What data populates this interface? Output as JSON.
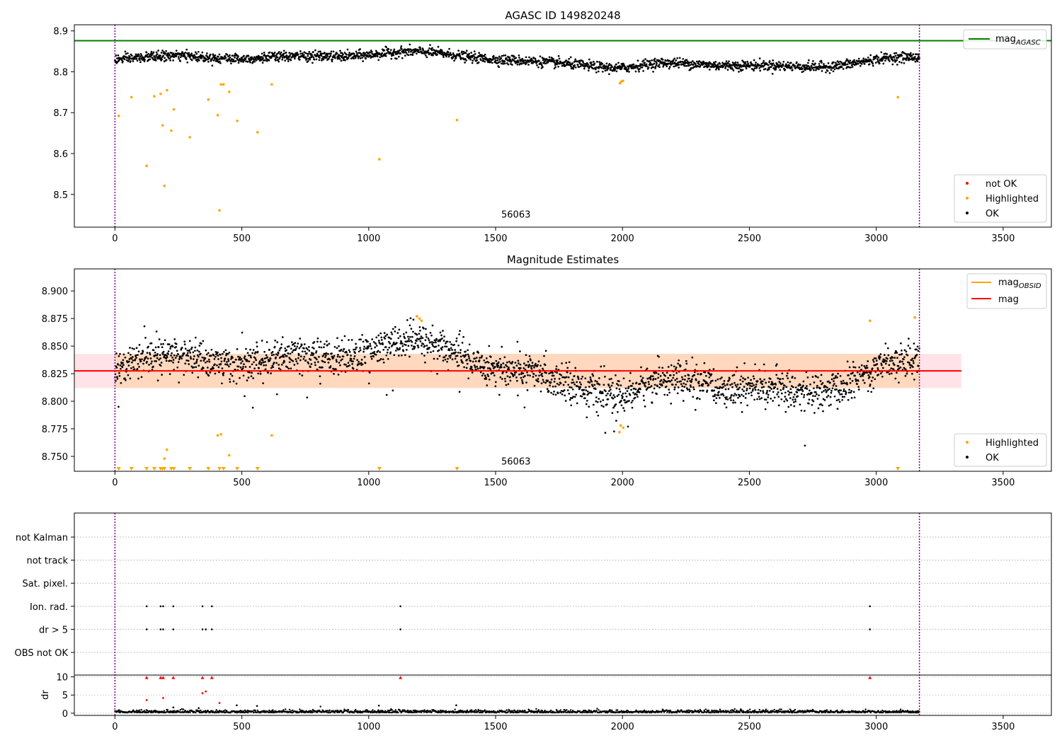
{
  "chart_data": [
    {
      "type": "scatter",
      "title": "AGASC ID 149820248",
      "xlim": [
        -160,
        3690
      ],
      "ylim": [
        8.42,
        8.915
      ],
      "x_ticks": [
        0,
        500,
        1000,
        1500,
        2000,
        2500,
        3000,
        3500
      ],
      "y_ticks": [
        8.5,
        8.6,
        8.7,
        8.8,
        8.9
      ],
      "vlines": [
        0,
        3170
      ],
      "vline_color": "#800080",
      "annotation": {
        "text": "56063",
        "x": 1580,
        "y": 8.443
      },
      "mag_agasc": 8.876,
      "mag_agasc_color": "#008000",
      "line_legend": {
        "label": "mag",
        "sub": "AGASC",
        "position": "top-right"
      },
      "point_legend": {
        "position": "lower-right",
        "entries": [
          {
            "label": "not OK",
            "color": "#ff0000"
          },
          {
            "label": "Highlighted",
            "color": "#ffa500"
          },
          {
            "label": "OK",
            "color": "#000000"
          }
        ]
      },
      "ok_series": {
        "x_start": 0,
        "x_end": 3170,
        "mean": 8.828,
        "trend_amp": 0.014,
        "scatter": 0.008
      },
      "highlighted": [
        {
          "x": 15,
          "y": 8.692
        },
        {
          "x": 65,
          "y": 8.738
        },
        {
          "x": 125,
          "y": 8.57
        },
        {
          "x": 155,
          "y": 8.74
        },
        {
          "x": 180,
          "y": 8.746
        },
        {
          "x": 188,
          "y": 8.669
        },
        {
          "x": 195,
          "y": 8.521
        },
        {
          "x": 205,
          "y": 8.755
        },
        {
          "x": 222,
          "y": 8.656
        },
        {
          "x": 232,
          "y": 8.708
        },
        {
          "x": 295,
          "y": 8.64
        },
        {
          "x": 368,
          "y": 8.732
        },
        {
          "x": 405,
          "y": 8.694
        },
        {
          "x": 412,
          "y": 8.461
        },
        {
          "x": 418,
          "y": 8.769
        },
        {
          "x": 428,
          "y": 8.769
        },
        {
          "x": 450,
          "y": 8.751
        },
        {
          "x": 482,
          "y": 8.68
        },
        {
          "x": 562,
          "y": 8.652
        },
        {
          "x": 618,
          "y": 8.769
        },
        {
          "x": 1042,
          "y": 8.586
        },
        {
          "x": 1348,
          "y": 8.682
        },
        {
          "x": 1990,
          "y": 8.772
        },
        {
          "x": 1995,
          "y": 8.776
        },
        {
          "x": 2002,
          "y": 8.778
        },
        {
          "x": 3085,
          "y": 8.738
        }
      ]
    },
    {
      "type": "scatter",
      "title": "Magnitude Estimates",
      "xlim": [
        -160,
        3690
      ],
      "ylim": [
        8.7365,
        8.92
      ],
      "x_ticks": [
        0,
        500,
        1000,
        1500,
        2000,
        2500,
        3000,
        3500
      ],
      "y_ticks": [
        8.75,
        8.775,
        8.8,
        8.825,
        8.85,
        8.875,
        8.9
      ],
      "y_tick_labels": [
        "8.750",
        "8.775",
        "8.800",
        "8.825",
        "8.850",
        "8.875",
        "8.900"
      ],
      "vlines": [
        0,
        3170
      ],
      "vline_color": "#800080",
      "annotation": {
        "text": "56063",
        "x": 1580,
        "y": 8.7425
      },
      "mag": 8.8275,
      "mag_color": "#ff0000",
      "band": {
        "low": 8.812,
        "high": 8.843,
        "x_start": -160,
        "x_end": 3335
      },
      "line_legend": {
        "position": "top-right",
        "entries": [
          {
            "label": "mag",
            "sub": "OBSID",
            "color": "#ffa500"
          },
          {
            "label": "mag",
            "sub": "",
            "color": "#ff0000"
          }
        ]
      },
      "point_legend": {
        "position": "lower-right",
        "entries": [
          {
            "label": "Highlighted",
            "color": "#ffa500"
          },
          {
            "label": "OK",
            "color": "#000000"
          }
        ]
      },
      "ok_series": {
        "x_start": 0,
        "x_end": 3170,
        "mean": 8.828,
        "trend_amp": 0.014,
        "scatter": 0.008
      },
      "highlighted_points": [
        {
          "x": 195,
          "y": 8.748
        },
        {
          "x": 205,
          "y": 8.756
        },
        {
          "x": 405,
          "y": 8.769
        },
        {
          "x": 418,
          "y": 8.77
        },
        {
          "x": 450,
          "y": 8.751
        },
        {
          "x": 618,
          "y": 8.769
        },
        {
          "x": 1190,
          "y": 8.877
        },
        {
          "x": 1200,
          "y": 8.875
        },
        {
          "x": 1208,
          "y": 8.873
        },
        {
          "x": 1988,
          "y": 8.772
        },
        {
          "x": 1993,
          "y": 8.778
        },
        {
          "x": 2003,
          "y": 8.776
        },
        {
          "x": 2975,
          "y": 8.873
        },
        {
          "x": 3152,
          "y": 8.876
        }
      ],
      "clipped_markers_x": [
        15,
        65,
        125,
        155,
        180,
        188,
        195,
        222,
        232,
        295,
        368,
        412,
        428,
        482,
        562,
        1042,
        1348,
        3085
      ]
    },
    {
      "type": "scatter",
      "title": "",
      "xlim": [
        -160,
        3690
      ],
      "x_ticks": [
        0,
        500,
        1000,
        1500,
        2000,
        2500,
        3000,
        3500
      ],
      "vlines": [
        0,
        3170
      ],
      "flag_labels": [
        "not Kalman",
        "not track",
        "Sat. pixel.",
        "Ion. rad.",
        "dr > 5",
        "OBS not OK"
      ],
      "flag_points": {
        "Ion. rad.": [
          125,
          180,
          190,
          230,
          345,
          382,
          1125,
          2975
        ],
        "dr > 5": [
          125,
          180,
          190,
          230,
          345,
          358,
          382,
          1125,
          2975
        ]
      },
      "dr": {
        "ylabel": "dr",
        "ylim": [
          -0.6,
          10.5
        ],
        "y_ticks": [
          0,
          5,
          10
        ],
        "clipped_red_x": [
          125,
          180,
          190,
          230,
          345,
          382,
          1125,
          2975
        ],
        "red_points": [
          {
            "x": 125,
            "y": 3.6
          },
          {
            "x": 190,
            "y": 4.2
          },
          {
            "x": 345,
            "y": 5.5
          },
          {
            "x": 358,
            "y": 6.0
          },
          {
            "x": 412,
            "y": 2.8
          }
        ],
        "outliers": [
          {
            "x": 230,
            "y": 1.6
          },
          {
            "x": 330,
            "y": 1.4
          },
          {
            "x": 480,
            "y": 2.2
          },
          {
            "x": 560,
            "y": 2.0
          },
          {
            "x": 1040,
            "y": 2.1
          },
          {
            "x": 1345,
            "y": 2.2
          }
        ]
      }
    }
  ]
}
